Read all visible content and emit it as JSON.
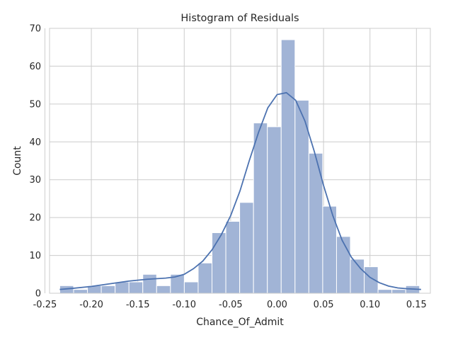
{
  "chart_data": {
    "type": "bar",
    "title": "Histogram of Residuals",
    "xlabel": "Chance_Of_Admit",
    "ylabel": "Count",
    "xlim": [
      -0.245,
      0.165
    ],
    "ylim": [
      0,
      70
    ],
    "grid": true,
    "x_ticks": [
      "-0.25",
      "-0.20",
      "-0.15",
      "-0.10",
      "-0.05",
      "0.00",
      "0.05",
      "0.10",
      "0.15"
    ],
    "x_tick_values": [
      -0.25,
      -0.2,
      -0.15,
      -0.1,
      -0.05,
      0.0,
      0.05,
      0.1,
      0.15
    ],
    "y_ticks": [
      "0",
      "10",
      "20",
      "30",
      "40",
      "50",
      "60",
      "70"
    ],
    "y_tick_values": [
      0,
      10,
      20,
      30,
      40,
      50,
      60,
      70
    ],
    "bins": {
      "start": -0.234,
      "width": 0.0149,
      "counts": [
        2,
        1,
        2,
        2,
        3,
        3,
        5,
        2,
        5,
        3,
        8,
        16,
        19,
        24,
        45,
        44,
        67,
        51,
        37,
        23,
        15,
        9,
        7,
        1,
        1,
        2
      ]
    },
    "kde": {
      "x": [
        -0.234,
        -0.22,
        -0.2,
        -0.18,
        -0.16,
        -0.14,
        -0.12,
        -0.11,
        -0.1,
        -0.09,
        -0.08,
        -0.07,
        -0.06,
        -0.05,
        -0.04,
        -0.03,
        -0.02,
        -0.01,
        0.0,
        0.01,
        0.02,
        0.03,
        0.04,
        0.05,
        0.06,
        0.07,
        0.08,
        0.09,
        0.1,
        0.11,
        0.12,
        0.13,
        0.14,
        0.155
      ],
      "y": [
        1.0,
        1.3,
        1.8,
        2.5,
        3.2,
        3.7,
        4.0,
        4.3,
        5.0,
        6.5,
        8.5,
        11.5,
        15.5,
        20.5,
        27.0,
        35.0,
        42.5,
        49.0,
        52.5,
        53.0,
        51.0,
        45.5,
        37.5,
        28.5,
        20.5,
        14.0,
        9.5,
        6.5,
        4.2,
        2.8,
        1.9,
        1.4,
        1.2,
        1.0
      ]
    },
    "colors": {
      "bar_fill": "#a1b4d6",
      "bar_edge": "#ffffff",
      "kde_line": "#4c72b0",
      "grid": "#cccccc",
      "text": "#262626"
    }
  }
}
